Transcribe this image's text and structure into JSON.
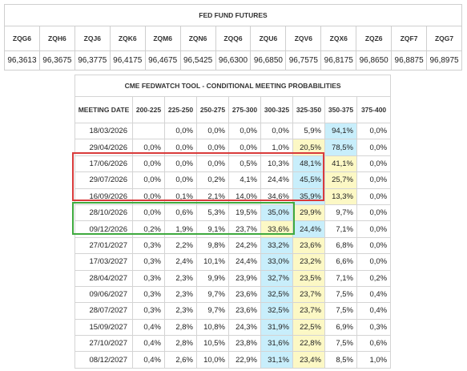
{
  "futures": {
    "title": "FED FUND FUTURES",
    "columns": [
      "ZQG6",
      "ZQH6",
      "ZQJ6",
      "ZQK6",
      "ZQM6",
      "ZQN6",
      "ZQQ6",
      "ZQU6",
      "ZQV6",
      "ZQX6",
      "ZQZ6",
      "ZQF7",
      "ZQG7"
    ],
    "values": [
      "96,3613",
      "96,3675",
      "96,3775",
      "96,4175",
      "96,4675",
      "96,5425",
      "96,6300",
      "96,6850",
      "96,7575",
      "96,8175",
      "96,8650",
      "96,8875",
      "96,8975"
    ]
  },
  "fedwatch": {
    "title": "CME FEDWATCH TOOL - CONDITIONAL MEETING PROBABILITIES",
    "headers": [
      "MEETING DATE",
      "200-225",
      "225-250",
      "250-275",
      "275-300",
      "300-325",
      "325-350",
      "350-375",
      "375-400"
    ],
    "rows": [
      [
        "18/03/2026",
        "",
        "0,0%",
        "0,0%",
        "0,0%",
        "0,0%",
        "5,9%",
        "94,1%",
        "0,0%"
      ],
      [
        "29/04/2026",
        "0,0%",
        "0,0%",
        "0,0%",
        "0,0%",
        "1,0%",
        "20,5%",
        "78,5%",
        "0,0%"
      ],
      [
        "17/06/2026",
        "0,0%",
        "0,0%",
        "0,0%",
        "0,5%",
        "10,3%",
        "48,1%",
        "41,1%",
        "0,0%"
      ],
      [
        "29/07/2026",
        "0,0%",
        "0,0%",
        "0,2%",
        "4,1%",
        "24,4%",
        "45,5%",
        "25,7%",
        "0,0%"
      ],
      [
        "16/09/2026",
        "0,0%",
        "0,1%",
        "2,1%",
        "14,0%",
        "34,6%",
        "35,9%",
        "13,3%",
        "0,0%"
      ],
      [
        "28/10/2026",
        "0,0%",
        "0,6%",
        "5,3%",
        "19,5%",
        "35,0%",
        "29,9%",
        "9,7%",
        "0,0%"
      ],
      [
        "09/12/2026",
        "0,2%",
        "1,9%",
        "9,1%",
        "23,7%",
        "33,6%",
        "24,4%",
        "7,1%",
        "0,0%"
      ],
      [
        "27/01/2027",
        "0,3%",
        "2,2%",
        "9,8%",
        "24,2%",
        "33,2%",
        "23,6%",
        "6,8%",
        "0,0%"
      ],
      [
        "17/03/2027",
        "0,3%",
        "2,4%",
        "10,1%",
        "24,4%",
        "33,0%",
        "23,2%",
        "6,6%",
        "0,0%"
      ],
      [
        "28/04/2027",
        "0,3%",
        "2,3%",
        "9,9%",
        "23,9%",
        "32,7%",
        "23,5%",
        "7,1%",
        "0,2%"
      ],
      [
        "09/06/2027",
        "0,3%",
        "2,3%",
        "9,7%",
        "23,6%",
        "32,5%",
        "23,7%",
        "7,5%",
        "0,4%"
      ],
      [
        "28/07/2027",
        "0,3%",
        "2,3%",
        "9,7%",
        "23,6%",
        "32,5%",
        "23,7%",
        "7,5%",
        "0,4%"
      ],
      [
        "15/09/2027",
        "0,4%",
        "2,8%",
        "10,8%",
        "24,3%",
        "31,9%",
        "22,5%",
        "6,9%",
        "0,3%"
      ],
      [
        "27/10/2027",
        "0,4%",
        "2,8%",
        "10,5%",
        "23,8%",
        "31,6%",
        "22,8%",
        "7,5%",
        "0,6%"
      ],
      [
        "08/12/2027",
        "0,4%",
        "2,6%",
        "10,0%",
        "22,9%",
        "31,1%",
        "23,4%",
        "8,5%",
        "1,0%"
      ]
    ],
    "highlight": [
      [
        7
      ],
      [
        7
      ],
      [
        6
      ],
      [
        6
      ],
      [
        6
      ],
      [
        5
      ],
      [
        6
      ],
      [
        5
      ],
      [
        5
      ],
      [
        5
      ],
      [
        5
      ],
      [
        5
      ],
      [
        5
      ],
      [
        5
      ],
      [
        5
      ]
    ],
    "secondary": [
      [],
      [
        6
      ],
      [
        7
      ],
      [
        7
      ],
      [
        7
      ],
      [
        6
      ],
      [
        5
      ],
      [
        6
      ],
      [
        6
      ],
      [
        6
      ],
      [
        6
      ],
      [
        6
      ],
      [
        6
      ],
      [
        6
      ],
      [
        6
      ]
    ],
    "colors": {
      "blue": "#c8eefb",
      "yellow": "#fcf8c5",
      "red_box": "#d93b3b",
      "green_box": "#3eaa3e"
    }
  }
}
